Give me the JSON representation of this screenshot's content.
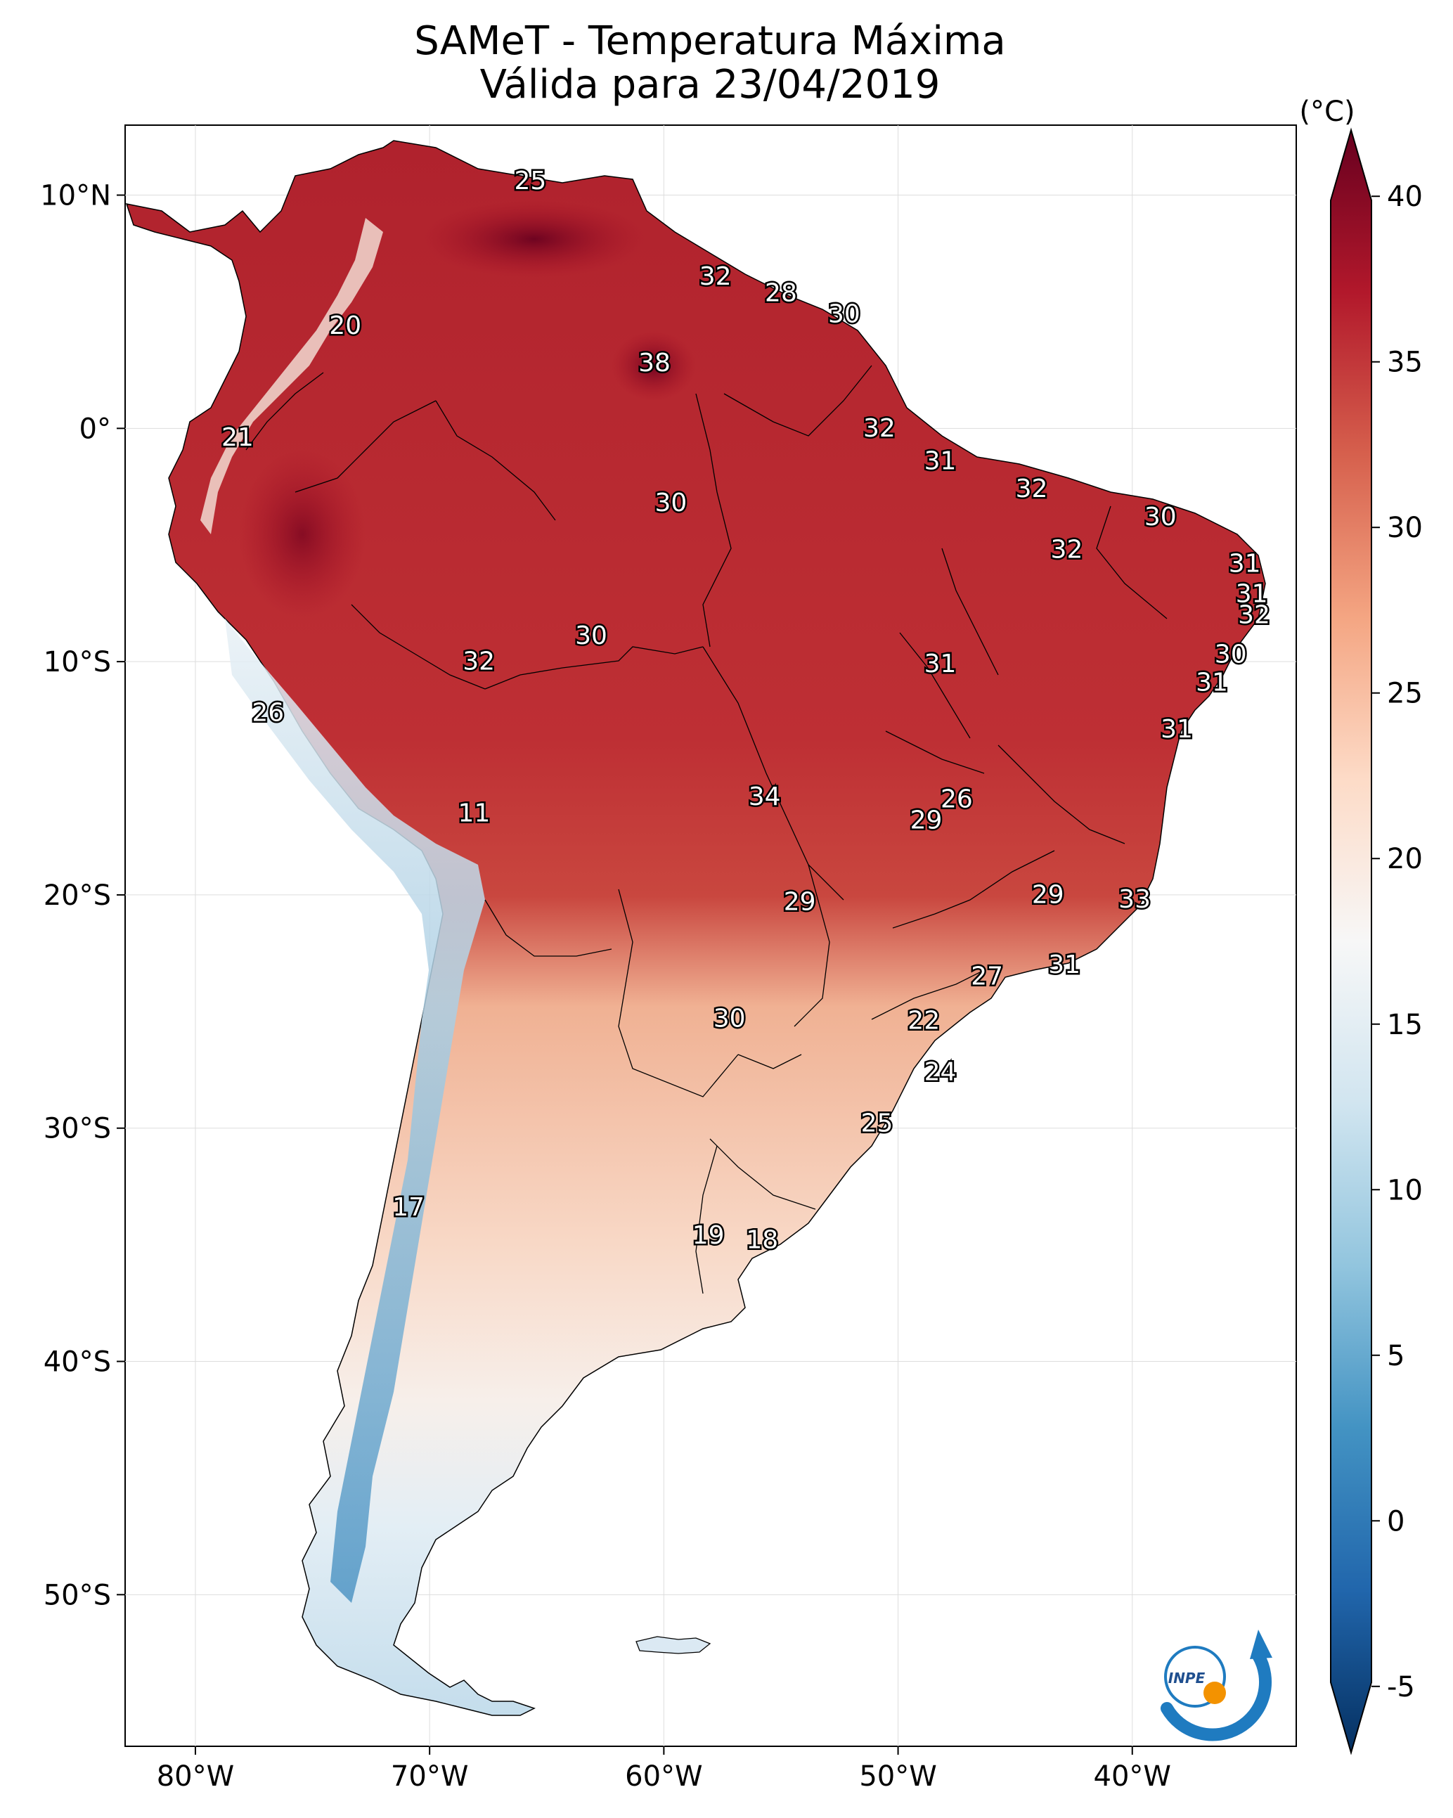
{
  "title": {
    "line1": "SAMeT - Temperatura Máxima",
    "line2": "Válida para 23/04/2019"
  },
  "map": {
    "lon_range": [
      -83,
      -33
    ],
    "lat_range": [
      -56.5,
      13.0
    ],
    "lon_ticks": [
      {
        "value": -80,
        "label": "80°W"
      },
      {
        "value": -70,
        "label": "70°W"
      },
      {
        "value": -60,
        "label": "60°W"
      },
      {
        "value": -50,
        "label": "50°W"
      },
      {
        "value": -40,
        "label": "40°W"
      }
    ],
    "lat_ticks": [
      {
        "value": 10,
        "label": "10°N"
      },
      {
        "value": 0,
        "label": "0°"
      },
      {
        "value": -10,
        "label": "10°S"
      },
      {
        "value": -20,
        "label": "20°S"
      },
      {
        "value": -30,
        "label": "30°S"
      },
      {
        "value": -40,
        "label": "40°S"
      },
      {
        "value": -50,
        "label": "50°S"
      }
    ],
    "point_labels": [
      {
        "lon": -65.7,
        "lat": 10.6,
        "text": "25"
      },
      {
        "lon": -73.6,
        "lat": 4.4,
        "text": "20"
      },
      {
        "lon": -78.2,
        "lat": -0.4,
        "text": "21"
      },
      {
        "lon": -57.8,
        "lat": 6.5,
        "text": "32"
      },
      {
        "lon": -55.0,
        "lat": 5.8,
        "text": "28"
      },
      {
        "lon": -52.3,
        "lat": 4.9,
        "text": "30"
      },
      {
        "lon": -60.4,
        "lat": 2.8,
        "text": "38"
      },
      {
        "lon": -50.8,
        "lat": 0.0,
        "text": "32"
      },
      {
        "lon": -48.2,
        "lat": -1.4,
        "text": "31"
      },
      {
        "lon": -44.3,
        "lat": -2.6,
        "text": "32"
      },
      {
        "lon": -38.8,
        "lat": -3.8,
        "text": "30"
      },
      {
        "lon": -42.8,
        "lat": -5.2,
        "text": "32"
      },
      {
        "lon": -35.2,
        "lat": -5.8,
        "text": "31"
      },
      {
        "lon": -34.9,
        "lat": -7.1,
        "text": "31"
      },
      {
        "lon": -34.8,
        "lat": -8.0,
        "text": "32"
      },
      {
        "lon": -35.8,
        "lat": -9.7,
        "text": "30"
      },
      {
        "lon": -36.6,
        "lat": -10.9,
        "text": "31"
      },
      {
        "lon": -38.1,
        "lat": -12.9,
        "text": "31"
      },
      {
        "lon": -59.7,
        "lat": -3.2,
        "text": "30"
      },
      {
        "lon": -63.1,
        "lat": -8.9,
        "text": "30"
      },
      {
        "lon": -67.9,
        "lat": -10.0,
        "text": "32"
      },
      {
        "lon": -48.2,
        "lat": -10.1,
        "text": "31"
      },
      {
        "lon": -76.9,
        "lat": -12.2,
        "text": "26"
      },
      {
        "lon": -55.7,
        "lat": -15.8,
        "text": "34"
      },
      {
        "lon": -47.5,
        "lat": -15.9,
        "text": "26"
      },
      {
        "lon": -48.8,
        "lat": -16.8,
        "text": "29"
      },
      {
        "lon": -68.1,
        "lat": -16.5,
        "text": "11"
      },
      {
        "lon": -54.2,
        "lat": -20.3,
        "text": "29"
      },
      {
        "lon": -43.6,
        "lat": -20.0,
        "text": "29"
      },
      {
        "lon": -39.9,
        "lat": -20.2,
        "text": "33"
      },
      {
        "lon": -42.9,
        "lat": -23.0,
        "text": "31"
      },
      {
        "lon": -46.2,
        "lat": -23.5,
        "text": "27"
      },
      {
        "lon": -48.9,
        "lat": -25.4,
        "text": "22"
      },
      {
        "lon": -57.2,
        "lat": -25.3,
        "text": "30"
      },
      {
        "lon": -48.2,
        "lat": -27.6,
        "text": "24"
      },
      {
        "lon": -50.9,
        "lat": -29.8,
        "text": "25"
      },
      {
        "lon": -70.9,
        "lat": -33.4,
        "text": "17"
      },
      {
        "lon": -58.1,
        "lat": -34.6,
        "text": "19"
      },
      {
        "lon": -55.8,
        "lat": -34.8,
        "text": "18"
      }
    ]
  },
  "colorbar": {
    "unit": "(°C)",
    "min": -7,
    "max": 42,
    "ticks": [
      {
        "value": 40,
        "label": "40"
      },
      {
        "value": 35,
        "label": "35"
      },
      {
        "value": 30,
        "label": "30"
      },
      {
        "value": 25,
        "label": "25"
      },
      {
        "value": 20,
        "label": "20"
      },
      {
        "value": 15,
        "label": "15"
      },
      {
        "value": 10,
        "label": "10"
      },
      {
        "value": 5,
        "label": "5"
      },
      {
        "value": 0,
        "label": "0"
      },
      {
        "value": -5,
        "label": "-5"
      }
    ],
    "colors": [
      "#053061",
      "#2166ac",
      "#4393c3",
      "#92c5de",
      "#d1e5f0",
      "#f7f7f7",
      "#fddbc7",
      "#f4a582",
      "#d6604d",
      "#b2182b",
      "#67001f"
    ]
  },
  "logo": {
    "text": "INPE"
  }
}
